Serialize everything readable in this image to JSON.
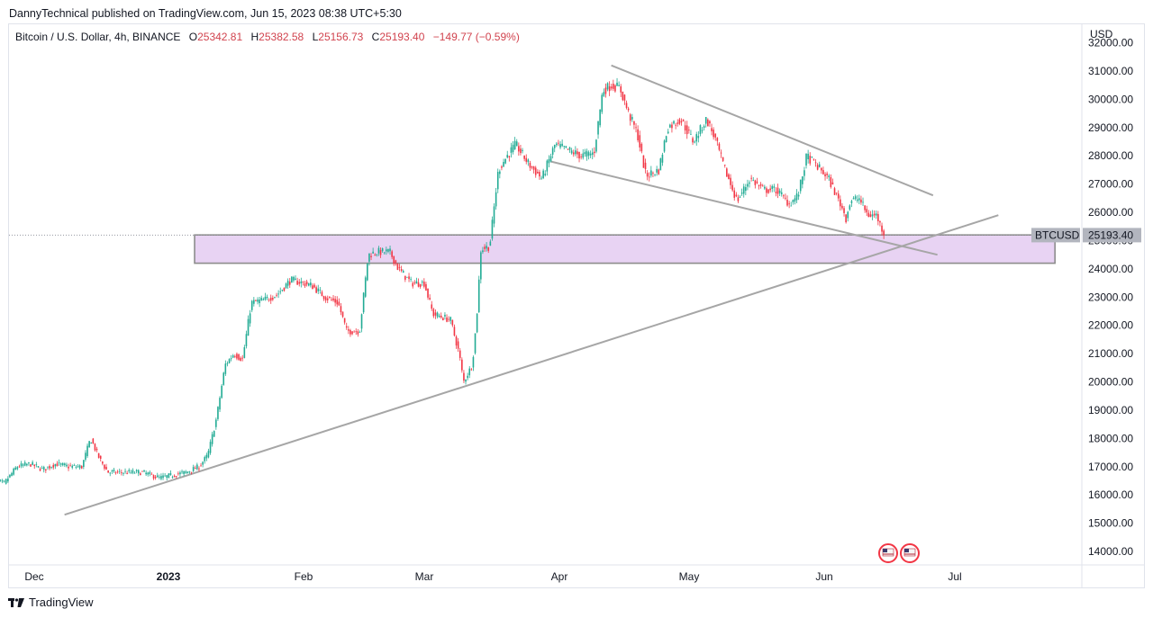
{
  "header": {
    "published": "DannyTechnical published on TradingView.com, Jun 15, 2023 08:38 UTC+5:30"
  },
  "legend": {
    "symbol": "Bitcoin / U.S. Dollar, 4h, BINANCE",
    "open_label": "O",
    "open": "25342.81",
    "high_label": "H",
    "high": "25382.58",
    "low_label": "L",
    "low": "25156.73",
    "close_label": "C",
    "close": "25193.40",
    "change": "−149.77 (−0.59%)"
  },
  "price_axis": {
    "currency": "USD"
  },
  "price_tag": {
    "symbol": "BTCUSD",
    "value": "25193.40"
  },
  "footer": {
    "brand": "TradingView"
  },
  "colors": {
    "up": "#22ab94",
    "down": "#f23645",
    "zone": "#e8d3f3",
    "trendline": "#a6a6a6",
    "tag": "#b2b5be"
  },
  "chart_data": {
    "type": "candlestick",
    "title": "Bitcoin / U.S. Dollar, 4h, BINANCE",
    "ylim": [
      13600,
      32400
    ],
    "y_ticks": [
      "14000.00",
      "15000.00",
      "16000.00",
      "17000.00",
      "18000.00",
      "19000.00",
      "20000.00",
      "21000.00",
      "22000.00",
      "23000.00",
      "24000.00",
      "25000.00",
      "26000.00",
      "27000.00",
      "28000.00",
      "29000.00",
      "30000.00",
      "31000.00",
      "32000.00"
    ],
    "x_ticks": [
      {
        "label": "Dec",
        "date": "2022-12-01",
        "bold": false
      },
      {
        "label": "2023",
        "date": "2023-01-01",
        "bold": true
      },
      {
        "label": "Feb",
        "date": "2023-02-01",
        "bold": false
      },
      {
        "label": "Mar",
        "date": "2023-03-01",
        "bold": false
      },
      {
        "label": "Apr",
        "date": "2023-04-01",
        "bold": false
      },
      {
        "label": "May",
        "date": "2023-05-01",
        "bold": false
      },
      {
        "label": "Jun",
        "date": "2023-06-01",
        "bold": false
      },
      {
        "label": "Jul",
        "date": "2023-07-01",
        "bold": false
      }
    ],
    "price_path": [
      [
        "2022-11-21",
        16600
      ],
      [
        "2022-11-24",
        16400
      ],
      [
        "2022-11-27",
        17000
      ],
      [
        "2022-11-30",
        17100
      ],
      [
        "2022-12-03",
        16900
      ],
      [
        "2022-12-06",
        17100
      ],
      [
        "2022-12-09",
        17000
      ],
      [
        "2022-12-12",
        17000
      ],
      [
        "2022-12-14",
        18000
      ],
      [
        "2022-12-16",
        17300
      ],
      [
        "2022-12-18",
        16800
      ],
      [
        "2022-12-22",
        16800
      ],
      [
        "2022-12-26",
        16800
      ],
      [
        "2022-12-30",
        16600
      ],
      [
        "2023-01-02",
        16700
      ],
      [
        "2023-01-05",
        16800
      ],
      [
        "2023-01-08",
        17000
      ],
      [
        "2023-01-10",
        17400
      ],
      [
        "2023-01-12",
        18700
      ],
      [
        "2023-01-14",
        20600
      ],
      [
        "2023-01-16",
        21000
      ],
      [
        "2023-01-18",
        20800
      ],
      [
        "2023-01-20",
        22800
      ],
      [
        "2023-01-23",
        22900
      ],
      [
        "2023-01-26",
        23100
      ],
      [
        "2023-01-29",
        23600
      ],
      [
        "2023-02-01",
        23500
      ],
      [
        "2023-02-03",
        23400
      ],
      [
        "2023-02-06",
        23000
      ],
      [
        "2023-02-09",
        22800
      ],
      [
        "2023-02-11",
        21800
      ],
      [
        "2023-02-14",
        21800
      ],
      [
        "2023-02-16",
        24500
      ],
      [
        "2023-02-18",
        24600
      ],
      [
        "2023-02-21",
        24600
      ],
      [
        "2023-02-23",
        24000
      ],
      [
        "2023-02-26",
        23500
      ],
      [
        "2023-03-01",
        23500
      ],
      [
        "2023-03-03",
        22400
      ],
      [
        "2023-03-07",
        22200
      ],
      [
        "2023-03-09",
        21000
      ],
      [
        "2023-03-10",
        20000
      ],
      [
        "2023-03-12",
        20600
      ],
      [
        "2023-03-13",
        22200
      ],
      [
        "2023-03-14",
        24700
      ],
      [
        "2023-03-16",
        24800
      ],
      [
        "2023-03-18",
        27500
      ],
      [
        "2023-03-20",
        28000
      ],
      [
        "2023-03-22",
        28400
      ],
      [
        "2023-03-25",
        27700
      ],
      [
        "2023-03-28",
        27200
      ],
      [
        "2023-03-31",
        28400
      ],
      [
        "2023-04-03",
        28200
      ],
      [
        "2023-04-06",
        28000
      ],
      [
        "2023-04-09",
        28100
      ],
      [
        "2023-04-11",
        30300
      ],
      [
        "2023-04-13",
        30500
      ],
      [
        "2023-04-15",
        30400
      ],
      [
        "2023-04-17",
        29500
      ],
      [
        "2023-04-19",
        28800
      ],
      [
        "2023-04-21",
        27300
      ],
      [
        "2023-04-24",
        27500
      ],
      [
        "2023-04-26",
        29000
      ],
      [
        "2023-04-29",
        29300
      ],
      [
        "2023-05-02",
        28500
      ],
      [
        "2023-05-05",
        29300
      ],
      [
        "2023-05-07",
        28600
      ],
      [
        "2023-05-09",
        27600
      ],
      [
        "2023-05-12",
        26400
      ],
      [
        "2023-05-15",
        27200
      ],
      [
        "2023-05-18",
        26800
      ],
      [
        "2023-05-21",
        26800
      ],
      [
        "2023-05-24",
        26300
      ],
      [
        "2023-05-26",
        26600
      ],
      [
        "2023-05-28",
        28000
      ],
      [
        "2023-05-30",
        27700
      ],
      [
        "2023-06-02",
        27200
      ],
      [
        "2023-06-05",
        26200
      ],
      [
        "2023-06-06",
        25800
      ],
      [
        "2023-06-07",
        26400
      ],
      [
        "2023-06-09",
        26500
      ],
      [
        "2023-06-11",
        25900
      ],
      [
        "2023-06-13",
        25900
      ],
      [
        "2023-06-14",
        25500
      ],
      [
        "2023-06-15",
        25193.4
      ]
    ],
    "annotations": {
      "support_zone": {
        "from": "2023-01-07",
        "to": "2023-07-24",
        "top": 25200,
        "bottom": 24200
      },
      "trendlines": [
        {
          "name": "ascending-support",
          "from": [
            "2022-12-08",
            15300
          ],
          "to": [
            "2023-07-11",
            25900
          ]
        },
        {
          "name": "upper-wedge",
          "from": [
            "2023-04-13",
            31200
          ],
          "to": [
            "2023-06-26",
            26600
          ]
        },
        {
          "name": "lower-wedge",
          "from": [
            "2023-03-30",
            27800
          ],
          "to": [
            "2023-06-27",
            24500
          ]
        }
      ],
      "last_price_line": 25193.4
    }
  }
}
